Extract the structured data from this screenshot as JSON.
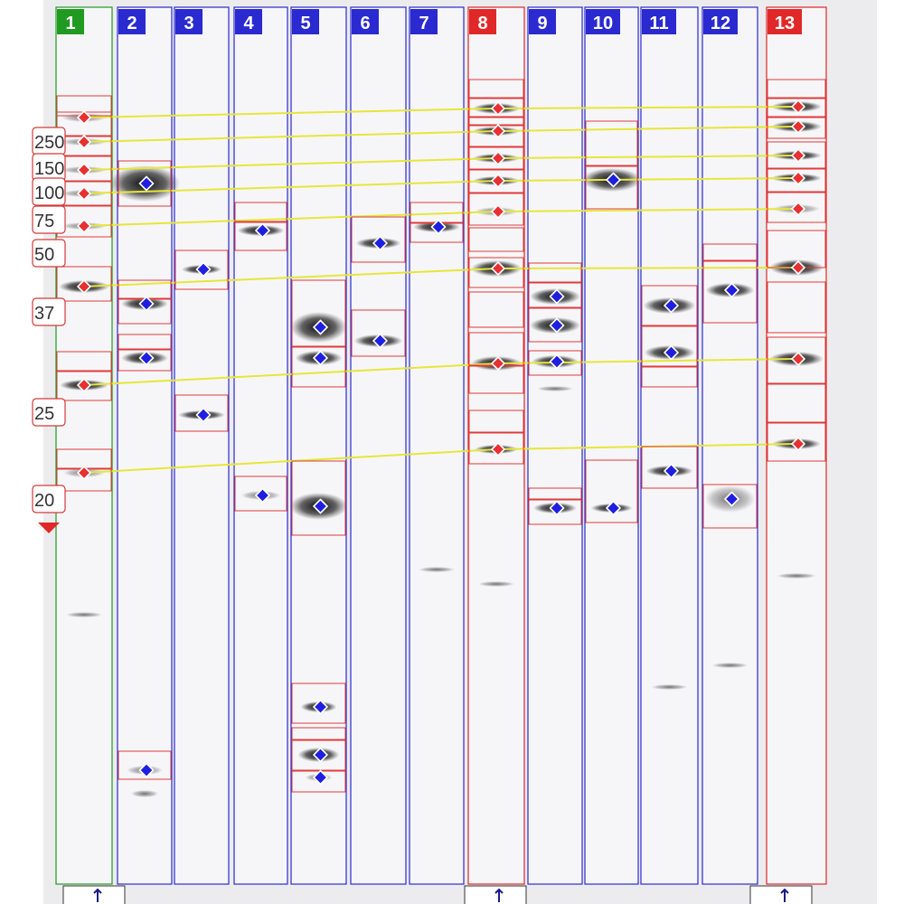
{
  "colors": {
    "background": "#ffffff",
    "gel": "#ececee",
    "lane_bg": "#f6f6f8",
    "sample_lane": "#2a2ad0",
    "marker_lane": "#e02828",
    "reference_lane": "#209a20",
    "band_box": "#e03a3a",
    "sample_marker": "#1f1fe0",
    "standard_marker": "#e83030",
    "link_line": "#e6e63a",
    "band_dark": "#111111"
  },
  "lanes": [
    {
      "label": "1",
      "role": "reference"
    },
    {
      "label": "2",
      "role": "sample"
    },
    {
      "label": "3",
      "role": "sample"
    },
    {
      "label": "4",
      "role": "sample"
    },
    {
      "label": "5",
      "role": "sample"
    },
    {
      "label": "6",
      "role": "sample"
    },
    {
      "label": "7",
      "role": "sample"
    },
    {
      "label": "8",
      "role": "marker"
    },
    {
      "label": "9",
      "role": "sample"
    },
    {
      "label": "10",
      "role": "sample"
    },
    {
      "label": "11",
      "role": "sample"
    },
    {
      "label": "12",
      "role": "sample"
    },
    {
      "label": "13",
      "role": "marker"
    }
  ],
  "mw_labels": [
    "250",
    "150",
    "100",
    "75",
    "50",
    "37",
    "25",
    "20"
  ],
  "scroll_indicator": "down-arrow-icon",
  "footer_icons": [
    "anchor-pin-icon",
    "anchor-pin-icon",
    "anchor-pin-icon"
  ]
}
